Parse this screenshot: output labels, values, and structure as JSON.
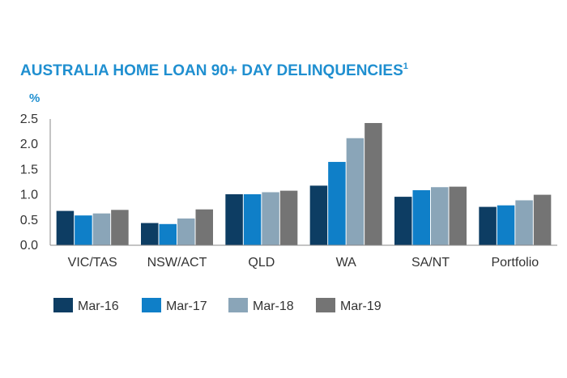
{
  "chart_data": {
    "type": "bar",
    "title": "AUSTRALIA HOME LOAN 90+ DAY DELINQUENCIES",
    "title_superscript": "1",
    "ylabel": "%",
    "ylim": [
      0,
      2.5
    ],
    "yticks": [
      "0.0",
      "0.5",
      "1.0",
      "1.5",
      "2.0",
      "2.5"
    ],
    "ytick_values": [
      0,
      0.5,
      1.0,
      1.5,
      2.0,
      2.5
    ],
    "grid": false,
    "legend_position": "bottom-left",
    "categories": [
      "VIC/TAS",
      "NSW/ACT",
      "QLD",
      "WA",
      "SA/NT",
      "Portfolio"
    ],
    "series": [
      {
        "name": "Mar-16",
        "color": "#0d3d63",
        "values": [
          0.68,
          0.44,
          1.01,
          1.18,
          0.96,
          0.76
        ]
      },
      {
        "name": "Mar-17",
        "color": "#0f7fc8",
        "values": [
          0.59,
          0.42,
          1.01,
          1.65,
          1.09,
          0.79
        ]
      },
      {
        "name": "Mar-18",
        "color": "#8aa5b8",
        "values": [
          0.63,
          0.53,
          1.05,
          2.12,
          1.15,
          0.89
        ]
      },
      {
        "name": "Mar-19",
        "color": "#747474",
        "values": [
          0.7,
          0.71,
          1.08,
          2.42,
          1.16,
          1.0
        ]
      }
    ]
  }
}
